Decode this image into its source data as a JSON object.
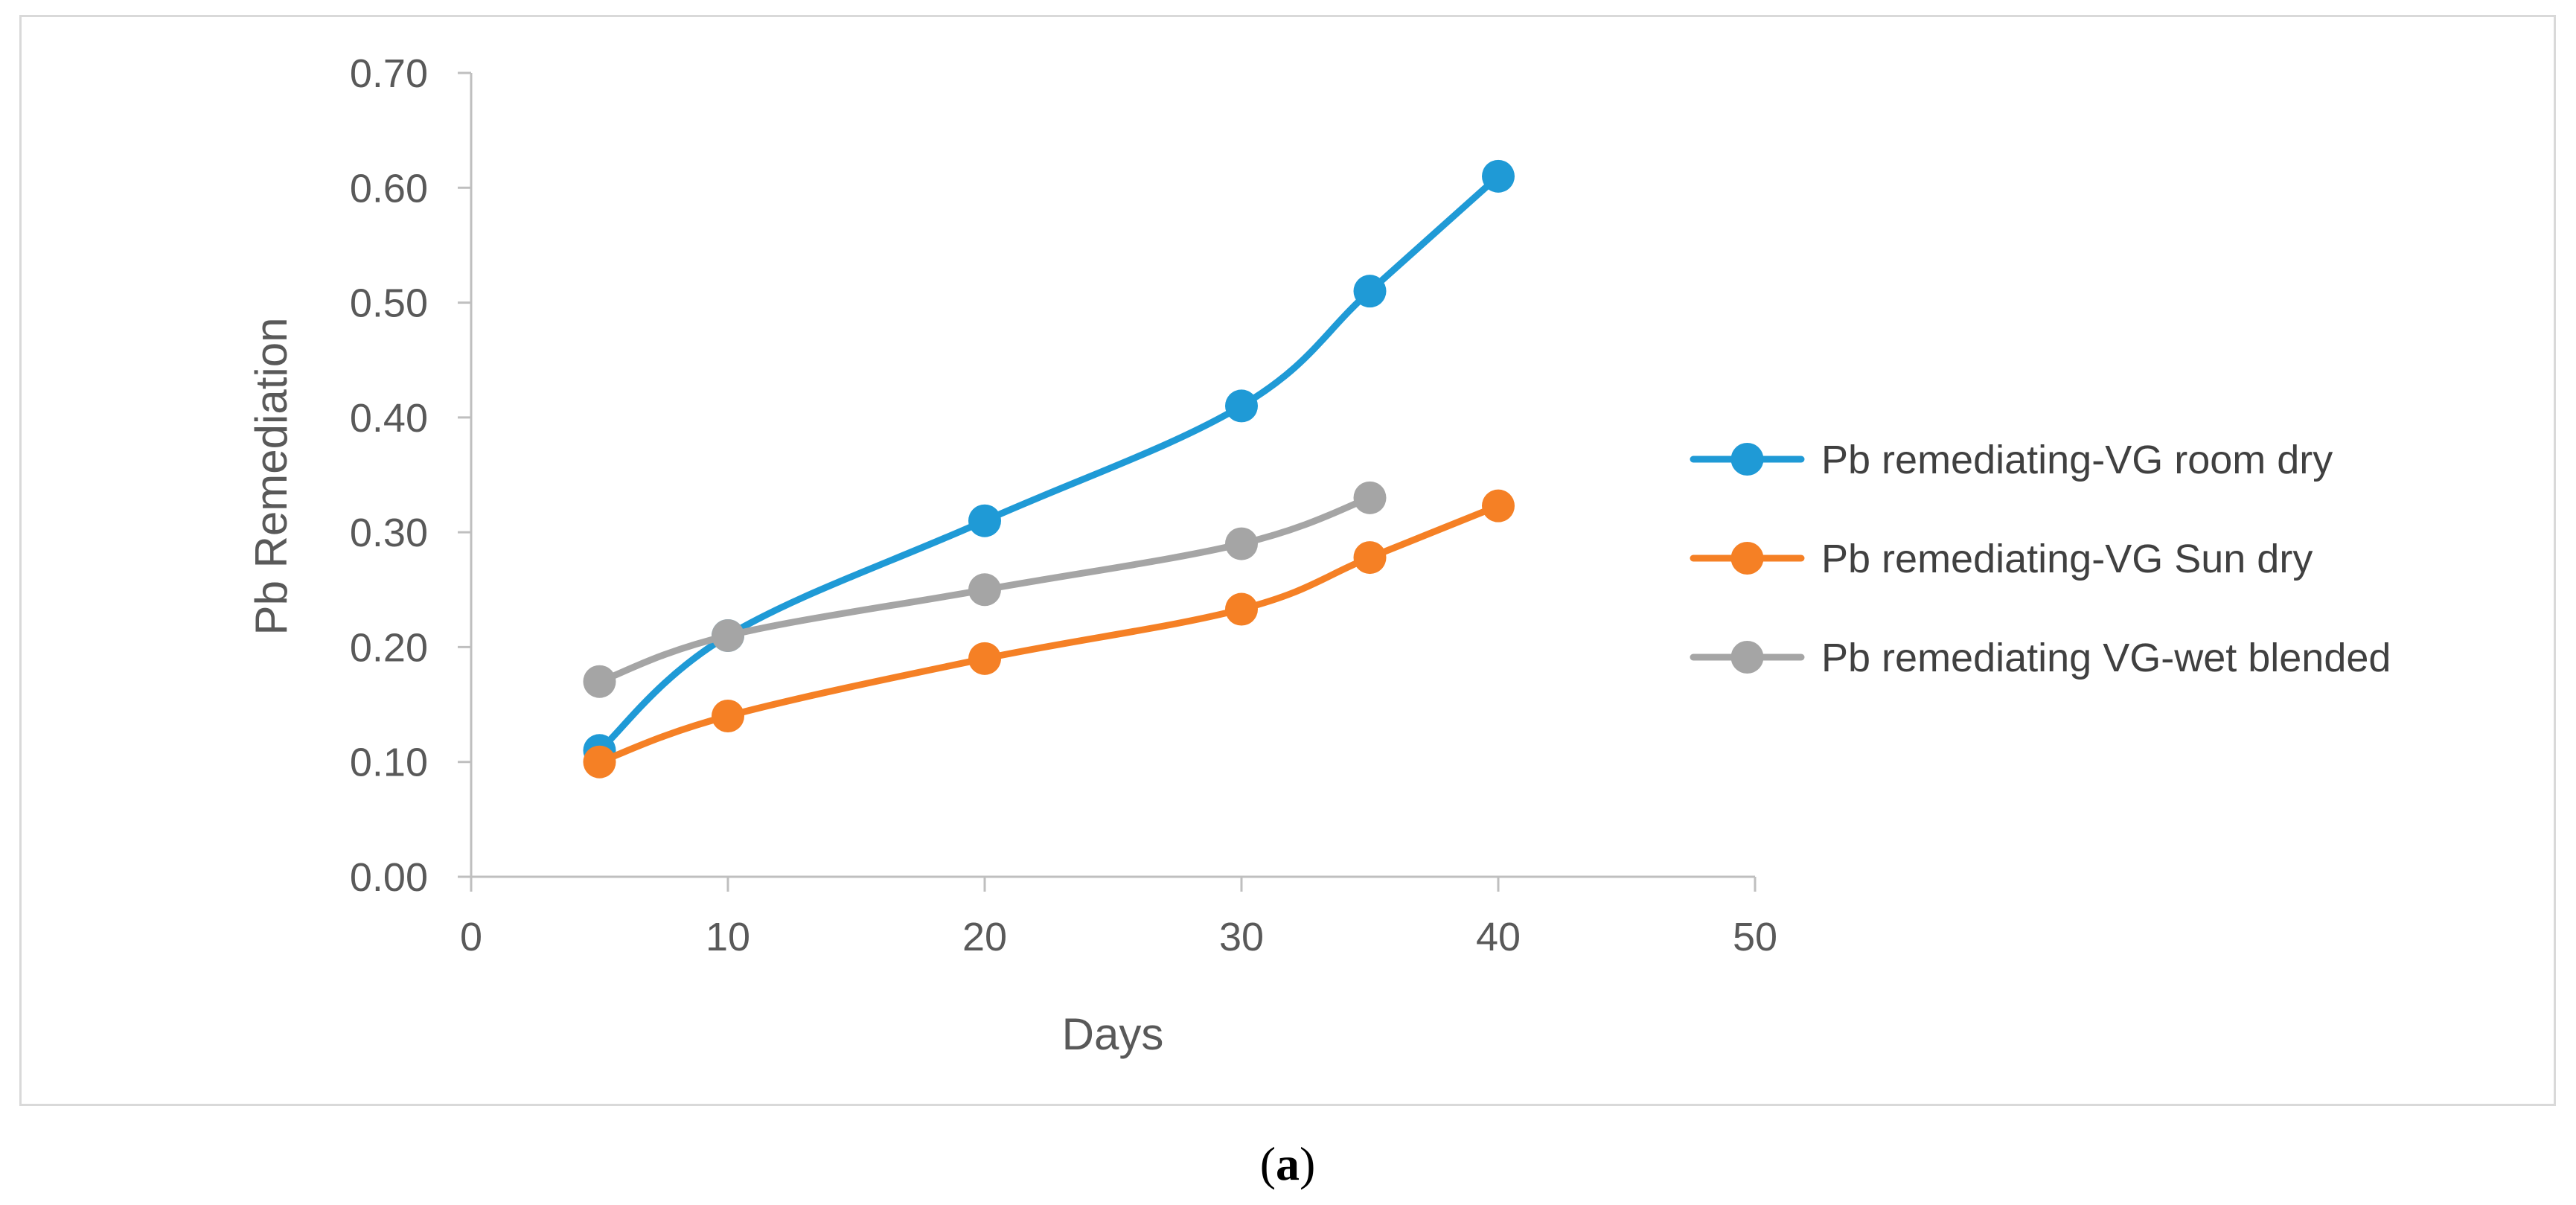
{
  "chart_data": {
    "type": "line",
    "title": "",
    "xlabel": "Days",
    "ylabel": "Pb Remediation",
    "xlim": [
      0,
      50
    ],
    "ylim": [
      0,
      0.7
    ],
    "x_ticks": [
      0,
      10,
      20,
      30,
      40,
      50
    ],
    "x_tick_labels": [
      "0",
      "10",
      "20",
      "30",
      "40",
      "50"
    ],
    "y_ticks": [
      0,
      0.1,
      0.2,
      0.3,
      0.4,
      0.5,
      0.6,
      0.7
    ],
    "y_tick_labels": [
      "0.00",
      "0.10",
      "0.20",
      "0.30",
      "0.40",
      "0.50",
      "0.60",
      "0.70"
    ],
    "grid": false,
    "legend_position": "right",
    "series": [
      {
        "name": "Pb remediating-VG room dry",
        "color": "#1f9ad6",
        "x": [
          5,
          10,
          20,
          30,
          35,
          40
        ],
        "values": [
          0.11,
          0.21,
          0.31,
          0.41,
          0.51,
          0.61
        ]
      },
      {
        "name": "Pb remediating-VG Sun dry",
        "color": "#f58025",
        "x": [
          5,
          10,
          20,
          30,
          35,
          40
        ],
        "values": [
          0.1,
          0.14,
          0.19,
          0.233,
          0.278,
          0.323
        ]
      },
      {
        "name": "Pb remediating VG-wet blended",
        "color": "#a5a5a5",
        "x": [
          5,
          10,
          20,
          30,
          35
        ],
        "values": [
          0.17,
          0.21,
          0.25,
          0.29,
          0.33
        ]
      }
    ],
    "caption": "(a)"
  },
  "caption_parts": {
    "open": "(",
    "letter": "a",
    "close": ")"
  }
}
